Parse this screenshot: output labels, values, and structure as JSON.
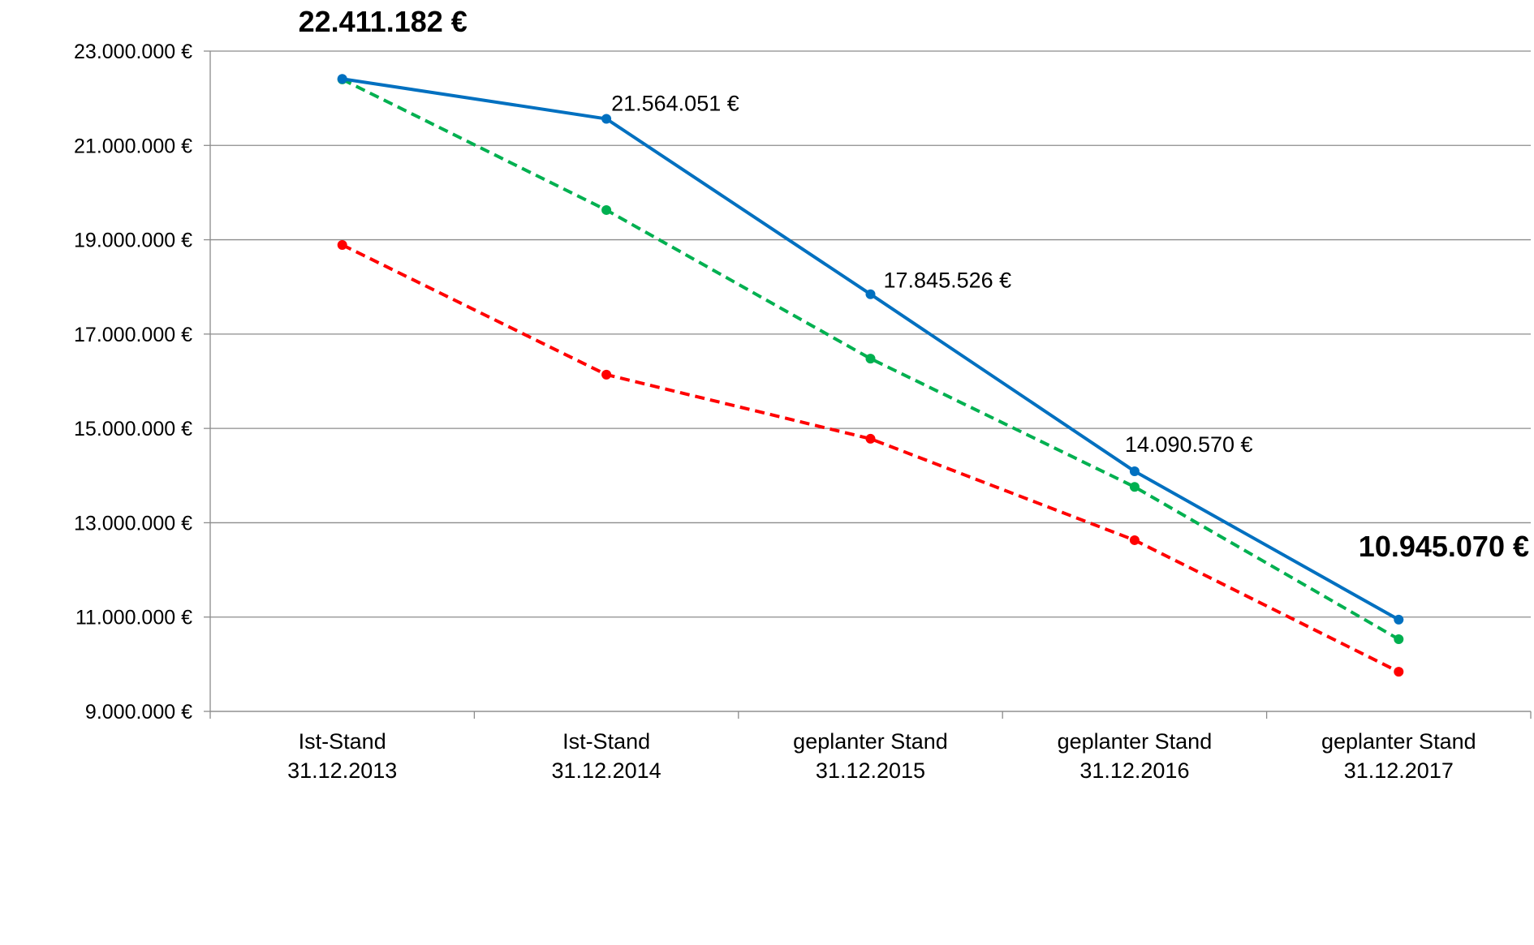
{
  "chart_data": {
    "type": "line",
    "categories": [
      [
        "Ist-Stand",
        "31.12.2013"
      ],
      [
        "Ist-Stand",
        "31.12.2014"
      ],
      [
        "geplanter Stand",
        "31.12.2015"
      ],
      [
        "geplanter Stand",
        "31.12.2016"
      ],
      [
        "geplanter Stand",
        "31.12.2017"
      ]
    ],
    "series": [
      {
        "color": "#0070c0",
        "dashed": false,
        "values": [
          22411182,
          21564051,
          17845526,
          14090570,
          10945070
        ],
        "value_labels": [
          "22.411.182 €",
          "21.564.051 €",
          "17.845.526 €",
          "14.090.570 €",
          "10.945.070 €"
        ]
      },
      {
        "color": "#00b050",
        "dashed": true,
        "values": [
          22400000,
          19630000,
          16480000,
          13760000,
          10530000
        ]
      },
      {
        "color": "#ff0000",
        "dashed": true,
        "values": [
          18890000,
          16140000,
          14780000,
          12630000,
          9840000
        ]
      }
    ],
    "ylim": [
      9000000,
      23000000
    ],
    "yticks": [
      {
        "value": 9000000,
        "label": "9.000.000 €"
      },
      {
        "value": 11000000,
        "label": "11.000.000 €"
      },
      {
        "value": 13000000,
        "label": "13.000.000 €"
      },
      {
        "value": 15000000,
        "label": "15.000.000 €"
      },
      {
        "value": 17000000,
        "label": "17.000.000 €"
      },
      {
        "value": 19000000,
        "label": "19.000.000 €"
      },
      {
        "value": 21000000,
        "label": "21.000.000 €"
      },
      {
        "value": 23000000,
        "label": "23.000.000 €"
      }
    ],
    "grid": true
  }
}
